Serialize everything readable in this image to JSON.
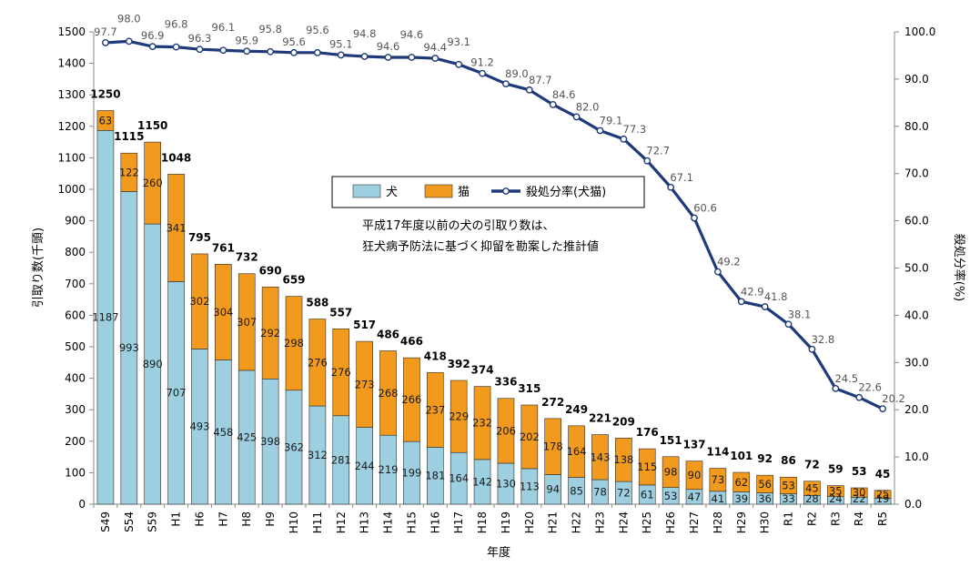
{
  "chart_data": {
    "type": "bar",
    "stacked": true,
    "categories": [
      "S49",
      "S54",
      "S59",
      "H1",
      "H6",
      "H7",
      "H8",
      "H9",
      "H10",
      "H11",
      "H12",
      "H13",
      "H14",
      "H15",
      "H16",
      "H17",
      "H18",
      "H19",
      "H20",
      "H21",
      "H22",
      "H23",
      "H24",
      "H25",
      "H26",
      "H27",
      "H28",
      "H29",
      "H30",
      "R1",
      "R2",
      "R3",
      "R4",
      "R5"
    ],
    "series": [
      {
        "name": "犬",
        "color": "#9dcfe0",
        "values": [
          1187,
          993,
          890,
          707,
          493,
          458,
          425,
          398,
          362,
          312,
          281,
          244,
          219,
          199,
          181,
          164,
          142,
          130,
          113,
          94,
          85,
          78,
          72,
          61,
          53,
          47,
          41,
          39,
          36,
          33,
          28,
          24,
          22,
          19
        ]
      },
      {
        "name": "猫",
        "color": "#f29a1d",
        "values": [
          63,
          122,
          260,
          341,
          302,
          304,
          307,
          292,
          298,
          276,
          276,
          273,
          268,
          266,
          237,
          229,
          232,
          206,
          202,
          178,
          164,
          143,
          138,
          115,
          98,
          90,
          73,
          62,
          56,
          53,
          45,
          35,
          30,
          25
        ]
      }
    ],
    "totals": [
      1250,
      1115,
      1150,
      1048,
      795,
      761,
      732,
      690,
      659,
      588,
      557,
      517,
      486,
      466,
      418,
      392,
      374,
      336,
      315,
      272,
      249,
      221,
      209,
      176,
      151,
      137,
      114,
      101,
      92,
      86,
      72,
      59,
      53,
      45
    ],
    "line_series": {
      "name": "殺処分率(犬猫)",
      "axis": "right",
      "color": "#1f3a7a",
      "values": [
        97.7,
        98.0,
        96.9,
        96.8,
        96.3,
        96.1,
        95.9,
        95.8,
        95.6,
        95.6,
        95.1,
        94.8,
        94.6,
        94.6,
        94.4,
        93.1,
        91.2,
        89.0,
        87.7,
        84.6,
        82.0,
        79.1,
        77.3,
        72.7,
        67.1,
        60.6,
        49.2,
        42.9,
        41.8,
        38.1,
        32.8,
        24.5,
        22.6,
        20.2
      ]
    },
    "xlabel": "年度",
    "ylabel": "引取り数(千頭)",
    "ylabel_right": "殺処分率(%)",
    "ylim": [
      0,
      1500
    ],
    "ylim_right": [
      0,
      100
    ],
    "yticks": [
      0,
      100,
      200,
      300,
      400,
      500,
      600,
      700,
      800,
      900,
      1000,
      1100,
      1200,
      1300,
      1400,
      1500
    ],
    "yticks_right": [
      "0.0",
      "10.0",
      "20.0",
      "30.0",
      "40.0",
      "50.0",
      "60.0",
      "70.0",
      "80.0",
      "90.0",
      "100.0"
    ],
    "annotation": [
      "平成17年度以前の犬の引取り数は、",
      "狂犬病予防法に基づく抑留を勘案した推計値"
    ],
    "legend": {
      "placement": "center",
      "entries": [
        "犬",
        "猫",
        "殺処分率(犬猫)"
      ]
    },
    "grid": false
  }
}
